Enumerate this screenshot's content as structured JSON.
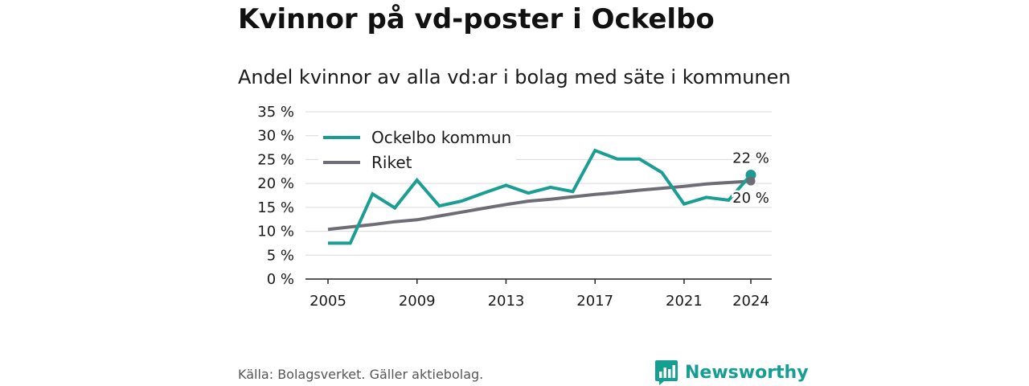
{
  "title": "Kvinnor på vd-poster i Ockelbo",
  "subtitle": "Andel kvinnor av alla vd:ar i bolag med säte i kommunen",
  "source": "Källa: Bolagsverket. Gäller aktiebolag.",
  "brand": {
    "name": "Newsworthy",
    "icon": "newsworthy-logo-icon",
    "color": "#159e92"
  },
  "chart_data": {
    "type": "line",
    "x": [
      2005,
      2006,
      2007,
      2008,
      2009,
      2010,
      2011,
      2012,
      2013,
      2014,
      2015,
      2016,
      2017,
      2018,
      2019,
      2020,
      2021,
      2022,
      2023,
      2024
    ],
    "x_ticks": [
      "2005",
      "2009",
      "2013",
      "2017",
      "2021",
      "2024"
    ],
    "y_ticks": [
      "0 %",
      "5 %",
      "10 %",
      "15 %",
      "20 %",
      "25 %",
      "30 %",
      "35 %"
    ],
    "ylim": [
      0,
      35
    ],
    "grid": true,
    "legend_position": "top-left",
    "series": [
      {
        "name": "Ockelbo kommun",
        "color": "#1a9e93",
        "values": [
          7.5,
          7.5,
          17.8,
          14.9,
          20.7,
          15.3,
          16.3,
          18.0,
          19.6,
          18.0,
          19.2,
          18.3,
          26.9,
          25.1,
          25.1,
          22.3,
          15.7,
          17.1,
          16.5,
          21.8
        ],
        "end_label": "22 %"
      },
      {
        "name": "Riket",
        "color": "#6e6d75",
        "values": [
          10.4,
          10.9,
          11.4,
          12.0,
          12.4,
          13.2,
          14.0,
          14.8,
          15.6,
          16.3,
          16.7,
          17.2,
          17.7,
          18.1,
          18.6,
          19.0,
          19.4,
          19.9,
          20.2,
          20.5
        ],
        "end_label": "20 %"
      }
    ],
    "title": "",
    "xlabel": "",
    "ylabel": ""
  }
}
